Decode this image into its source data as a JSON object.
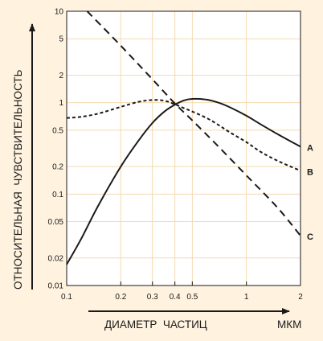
{
  "colors": {
    "background": "#fff3df",
    "plot_background": "#ffffff",
    "grid": "#f6d9b0",
    "curves": "#1a1a1a",
    "axis": "#1a1a1a"
  },
  "chart_data": {
    "type": "line",
    "xscale": "log",
    "yscale": "log",
    "xlabel": "ДИАМЕТР  ЧАСТИЦ",
    "xunit": "МКМ",
    "ylabel": "ОТНОСИТЕЛЬНАЯ  ЧУВСТВИТЕЛЬНОСТЬ",
    "xlim": [
      0.1,
      2
    ],
    "ylim": [
      0.01,
      10
    ],
    "grid": true,
    "xticks": [
      0.1,
      0.2,
      0.3,
      0.4,
      0.5,
      1,
      2
    ],
    "xtick_labels": [
      "0.1",
      "0.2",
      "0.3",
      "0.4",
      "0.5",
      "1",
      "2"
    ],
    "yticks": [
      10,
      5,
      2,
      1,
      0.5,
      0.2,
      0.1,
      0.05,
      0.02,
      0.01
    ],
    "ytick_labels": [
      "10",
      "5",
      "2",
      "1",
      "0.5",
      "0.2",
      "0.1",
      "0.05",
      "0.02",
      "0.01"
    ],
    "series": [
      {
        "name": "A",
        "style": "solid",
        "x": [
          0.1,
          0.12,
          0.15,
          0.2,
          0.25,
          0.3,
          0.35,
          0.4,
          0.45,
          0.5,
          0.6,
          0.7,
          0.8,
          1.0,
          1.2,
          1.5,
          2.0
        ],
        "y": [
          0.017,
          0.032,
          0.075,
          0.2,
          0.38,
          0.6,
          0.8,
          0.95,
          1.06,
          1.1,
          1.08,
          1.0,
          0.9,
          0.72,
          0.58,
          0.45,
          0.33
        ]
      },
      {
        "name": "B",
        "style": "dotted",
        "x": [
          0.1,
          0.12,
          0.15,
          0.2,
          0.25,
          0.3,
          0.35,
          0.4,
          0.45,
          0.5,
          0.6,
          0.7,
          0.8,
          1.0,
          1.2,
          1.5,
          2.0
        ],
        "y": [
          0.68,
          0.7,
          0.76,
          0.9,
          1.02,
          1.07,
          1.05,
          0.96,
          0.87,
          0.8,
          0.68,
          0.57,
          0.48,
          0.37,
          0.29,
          0.23,
          0.18
        ]
      },
      {
        "name": "C",
        "style": "dashed",
        "x": [
          0.13,
          0.2,
          0.3,
          0.4,
          0.5,
          0.7,
          1.0,
          1.5,
          2.0
        ],
        "y": [
          10,
          4.2,
          1.8,
          0.98,
          0.64,
          0.33,
          0.16,
          0.07,
          0.035
        ]
      }
    ]
  }
}
